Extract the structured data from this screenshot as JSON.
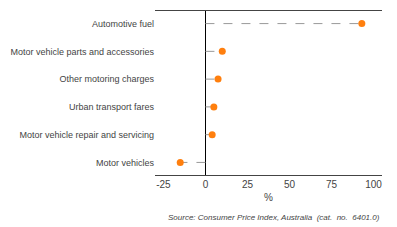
{
  "chart_data": {
    "type": "lollipop",
    "orientation": "horizontal",
    "categories": [
      "Motor vehicles",
      "Motor vehicle repair and servicing",
      "Urban transport fares",
      "Other motoring charges",
      "Motor vehicle parts and accessories",
      "Automotive fuel"
    ],
    "values": [
      -15.0,
      4.0,
      5.0,
      7.5,
      10.0,
      93.0
    ],
    "xlim": [
      -30,
      105
    ],
    "xticks": [
      -25,
      0,
      25,
      50,
      75,
      100
    ],
    "xlabel": "%",
    "annotations": [
      "Source: Consumer Price Index, Australia  (cat.  no.  6401.0)"
    ],
    "marker": "circle",
    "line_style": "dashed",
    "grid": false
  }
}
